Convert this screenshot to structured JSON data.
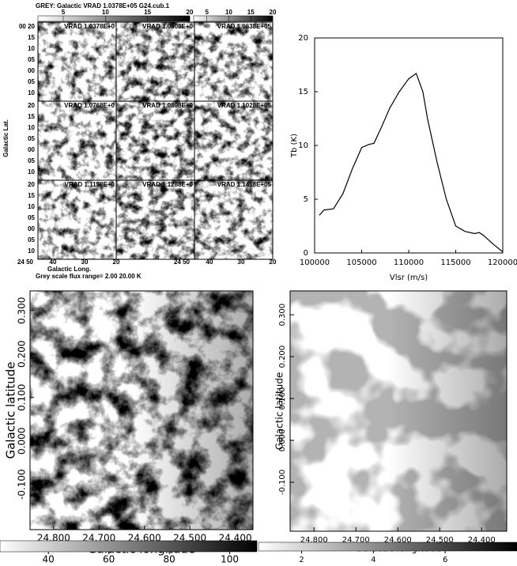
{
  "chart_data": [
    {
      "type": "channel-maps",
      "title": "GREY: Galactic  VRAD 1.0378E+05  G24.cub.1",
      "colorbar_ticks": [
        5,
        10,
        15,
        20
      ],
      "clim": [
        2,
        20
      ],
      "panel_labels": [
        "VRAD 1.0378E+0",
        "VRAD 1.0508E+0",
        "VRAD 1.0638E+05",
        "VRAD 1.0768E+0",
        "VRAD 1.0898E+0",
        "VRAD 1.1028E+05",
        "VRAD 1.1158E+0",
        "VRAD 1.1288E+0",
        "VRAD 1.1418E+05"
      ],
      "y_tick_labels": [
        [
          "00 20",
          "15",
          "10",
          "05",
          "00",
          "05",
          "10"
        ],
        [
          "20",
          "15",
          "10",
          "05",
          "00",
          "05",
          "10"
        ],
        [
          "20",
          "15",
          "10",
          "05",
          "00",
          "05",
          "10"
        ]
      ],
      "x_tick_labels": [
        [
          "24 50",
          "40",
          "30",
          "20"
        ],
        [
          "24 50",
          "40",
          "30",
          "20"
        ]
      ],
      "ylabel": "Galactic Lat.",
      "xlabel": "Galactic Long.",
      "footer": "Grey scale flux range= 2.00 20.00 K"
    },
    {
      "type": "line",
      "x": [
        100500,
        101000,
        102000,
        103000,
        104000,
        105000,
        105800,
        106300,
        107000,
        108000,
        109000,
        110000,
        110800,
        111500,
        112000,
        113000,
        114000,
        115000,
        116000,
        117000,
        117500,
        118000,
        119000,
        120000
      ],
      "values": [
        3.5,
        4.0,
        4.1,
        5.5,
        7.8,
        9.8,
        10.1,
        10.2,
        11.5,
        13.5,
        15.0,
        16.2,
        16.7,
        15.0,
        12.5,
        8.5,
        5.0,
        2.5,
        2.0,
        1.8,
        1.9,
        1.6,
        0.8,
        0.1
      ],
      "color": "#000000",
      "xlim": [
        100000,
        120000
      ],
      "xticks": [
        100000,
        105000,
        110000,
        115000,
        120000
      ],
      "ylim": [
        0,
        20
      ],
      "yticks": [
        0,
        5,
        10,
        15,
        20
      ],
      "xlabel": "Vlsr (m/s)",
      "ylabel": "Tb (K)"
    },
    {
      "type": "image",
      "xlim": [
        24.852,
        24.361
      ],
      "xticks": [
        {
          "value": 24.8,
          "label": "24.800"
        },
        {
          "value": 24.7,
          "label": "24.700"
        },
        {
          "value": 24.6,
          "label": "24.600"
        },
        {
          "value": 24.5,
          "label": "24.500"
        },
        {
          "value": 24.4,
          "label": "24.400"
        }
      ],
      "ylim": [
        -0.204,
        0.345
      ],
      "yticks": [
        {
          "value": -0.1,
          "label": "-0.100"
        },
        {
          "value": 0,
          "label": "0.000"
        },
        {
          "value": 0.1,
          "label": "0.100"
        },
        {
          "value": 0.2,
          "label": "0.200"
        },
        {
          "value": 0.3,
          "label": "0.300"
        }
      ],
      "xlabel": "Galactic longitude",
      "ylabel": "Galactic latitude",
      "colorbar": {
        "lim": [
          24,
          109
        ],
        "ticks": [
          40,
          60,
          80,
          100
        ]
      }
    },
    {
      "type": "image",
      "xlim": [
        24.857,
        24.34
      ],
      "xticks": [
        {
          "value": 24.8,
          "label": "24.800"
        },
        {
          "value": 24.7,
          "label": "24.700"
        },
        {
          "value": 24.6,
          "label": "24.600"
        },
        {
          "value": 24.5,
          "label": "24.500"
        },
        {
          "value": 24.4,
          "label": "24.400"
        }
      ],
      "ylim": [
        -0.217,
        0.357
      ],
      "yticks": [
        {
          "value": -0.1,
          "label": "-0.100"
        },
        {
          "value": 0,
          "label": "0.000"
        },
        {
          "value": 0.1,
          "label": "0.100"
        },
        {
          "value": 0.2,
          "label": "0.200"
        },
        {
          "value": 0.3,
          "label": "0.300"
        }
      ],
      "xlabel": "Galactic longitude",
      "ylabel": "Galactic latitude",
      "colorbar": {
        "lim": [
          0.8,
          8
        ],
        "ticks": [
          2,
          4,
          6
        ]
      }
    }
  ]
}
